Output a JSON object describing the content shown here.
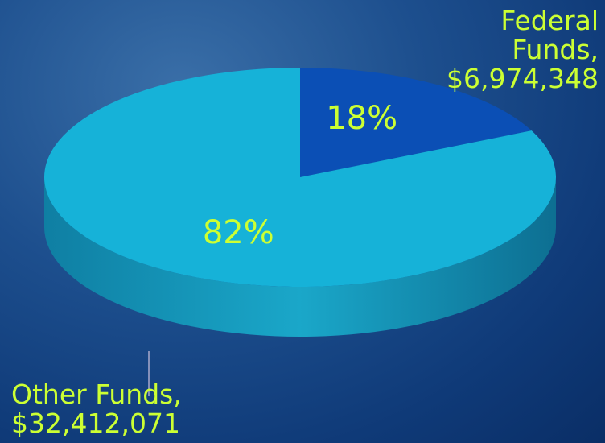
{
  "chart_data": {
    "type": "pie",
    "categories": [
      "Federal Funds,",
      "Other Funds,"
    ],
    "values": [
      18,
      82
    ],
    "value_labels": [
      "18%",
      "82%"
    ],
    "amounts": [
      6974348,
      32412071
    ],
    "amount_labels": [
      "$6,974,348",
      "$32,412,071"
    ],
    "colors": [
      "#0b4fb5",
      "#16b2d8"
    ]
  }
}
